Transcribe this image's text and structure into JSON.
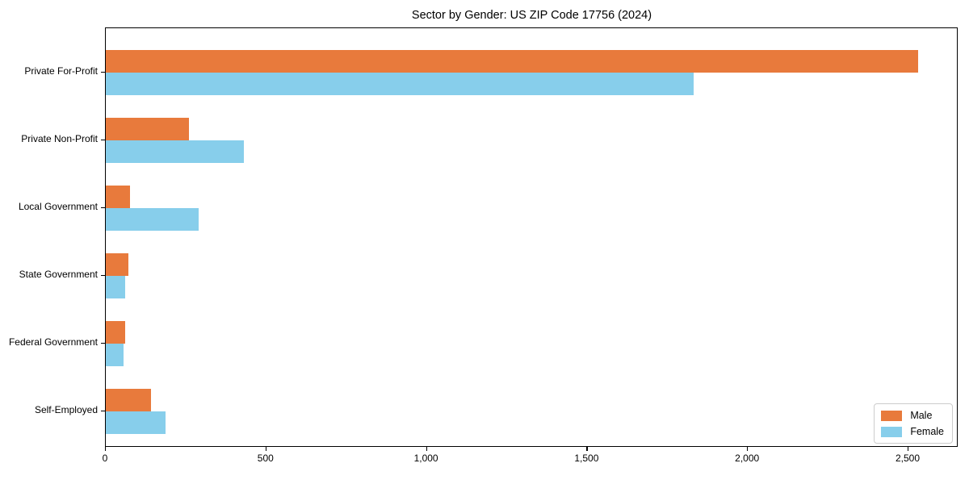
{
  "chart_data": {
    "type": "bar",
    "orientation": "horizontal",
    "title": "Sector by Gender: US ZIP Code 17756 (2024)",
    "categories": [
      "Private For-Profit",
      "Private Non-Profit",
      "Local Government",
      "State Government",
      "Federal Government",
      "Self-Employed"
    ],
    "series": [
      {
        "name": "Male",
        "color": "#e87a3c",
        "values": [
          2530,
          260,
          75,
          70,
          60,
          140
        ]
      },
      {
        "name": "Female",
        "color": "#87ceeb",
        "values": [
          1830,
          430,
          290,
          60,
          55,
          185
        ]
      }
    ],
    "xlabel": "",
    "ylabel": "",
    "xlim": [
      0,
      2656
    ],
    "x_tick_values": [
      0,
      500,
      1000,
      1500,
      2000,
      2500
    ],
    "x_tick_labels": [
      "0",
      "500",
      "1,000",
      "1,500",
      "2,000",
      "2,500"
    ],
    "grid": false,
    "legend_position": "lower right",
    "colors": {
      "male": "#e87a3c",
      "female": "#87ceeb",
      "spine": "#000000",
      "legend_border": "#cccccc",
      "background": "#ffffff"
    }
  }
}
